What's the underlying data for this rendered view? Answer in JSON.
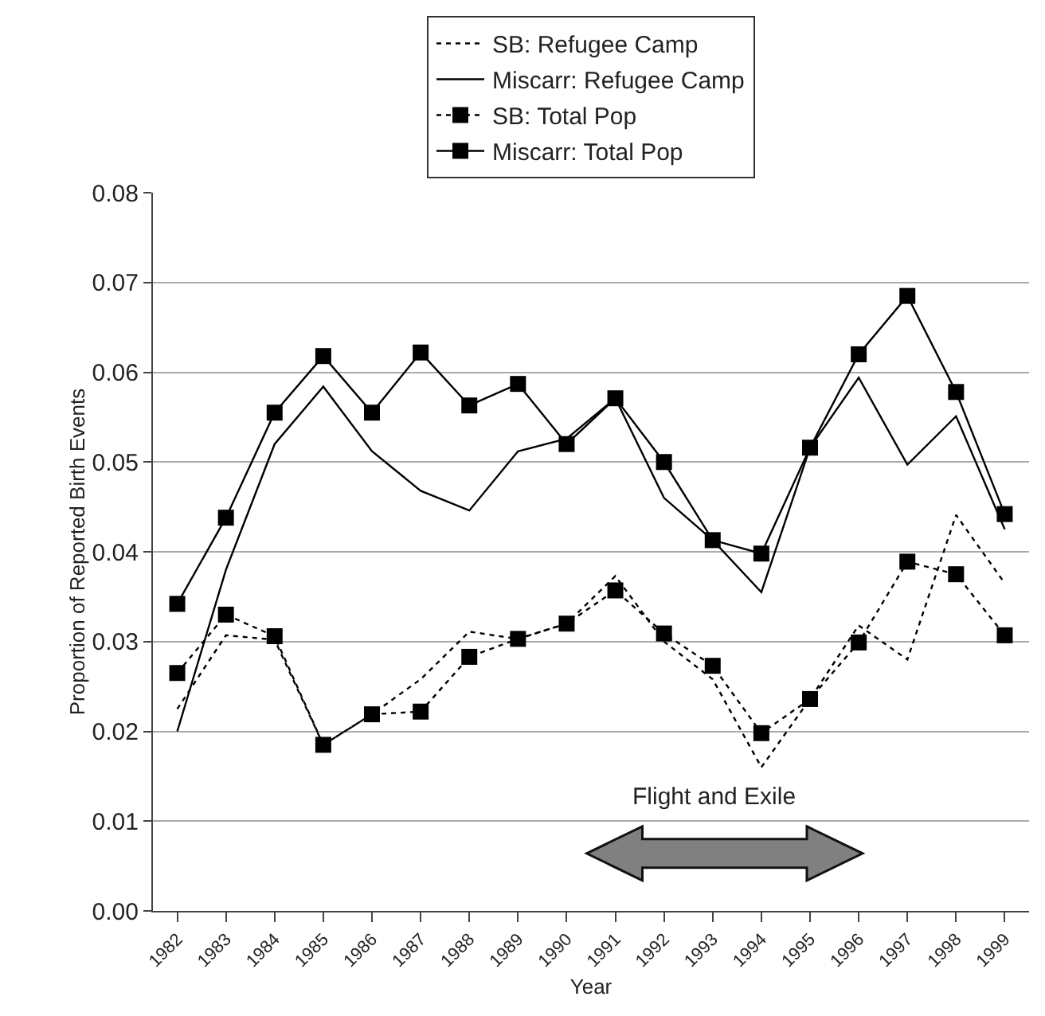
{
  "chart_data": {
    "type": "line",
    "xlabel": "Year",
    "ylabel": "Proportion of Reported Birth Events",
    "categories": [
      "1982",
      "1983",
      "1984",
      "1985",
      "1986",
      "1987",
      "1988",
      "1989",
      "1990",
      "1991",
      "1992",
      "1993",
      "1994",
      "1995",
      "1996",
      "1997",
      "1998",
      "1999"
    ],
    "series": [
      {
        "name": "SB: Refugee Camp",
        "color": "#000000",
        "line_style": "dotted",
        "marker": "none",
        "values": [
          0.0225,
          0.0307,
          0.0302,
          0.0185,
          0.0219,
          0.0258,
          0.0311,
          0.0303,
          0.032,
          0.0373,
          0.03,
          0.0258,
          0.016,
          0.0236,
          0.0318,
          0.028,
          0.0441,
          0.0365
        ]
      },
      {
        "name": "Miscarr: Refugee Camp",
        "color": "#000000",
        "line_style": "solid",
        "marker": "none",
        "values": [
          0.02,
          0.038,
          0.052,
          0.0584,
          0.0512,
          0.0468,
          0.0446,
          0.0512,
          0.0526,
          0.0571,
          0.046,
          0.0413,
          0.0355,
          0.0516,
          0.0594,
          0.0497,
          0.0551,
          0.0425
        ]
      },
      {
        "name": "SB: Total Pop",
        "color": "#000000",
        "line_style": "dotted",
        "marker": "square",
        "values": [
          0.0265,
          0.033,
          0.0306,
          0.0185,
          0.0219,
          0.0222,
          0.0283,
          0.0303,
          0.032,
          0.0357,
          0.0309,
          0.0273,
          0.0198,
          0.0236,
          0.0299,
          0.0389,
          0.0375,
          0.0307
        ]
      },
      {
        "name": "Miscarr: Total Pop",
        "color": "#000000",
        "line_style": "solid",
        "marker": "square",
        "values": [
          0.0342,
          0.0438,
          0.0555,
          0.0618,
          0.0555,
          0.0622,
          0.0563,
          0.0587,
          0.052,
          0.0571,
          0.05,
          0.0413,
          0.0398,
          0.0516,
          0.062,
          0.0685,
          0.0578,
          0.0442
        ]
      }
    ],
    "ylim": [
      0,
      0.08
    ],
    "yticks": [
      {
        "value": 0,
        "label": "0.00"
      },
      {
        "value": 0.01,
        "label": "0.01"
      },
      {
        "value": 0.02,
        "label": "0.02"
      },
      {
        "value": 0.03,
        "label": "0.03"
      },
      {
        "value": 0.04,
        "label": "0.04"
      },
      {
        "value": 0.05,
        "label": "0.05"
      },
      {
        "value": 0.06,
        "label": "0.06"
      },
      {
        "value": 0.07,
        "label": "0.07"
      },
      {
        "value": 0.08,
        "label": "0.08"
      }
    ],
    "grid": "y",
    "legend": "top",
    "annotations": [
      "Flight and Exile"
    ]
  }
}
